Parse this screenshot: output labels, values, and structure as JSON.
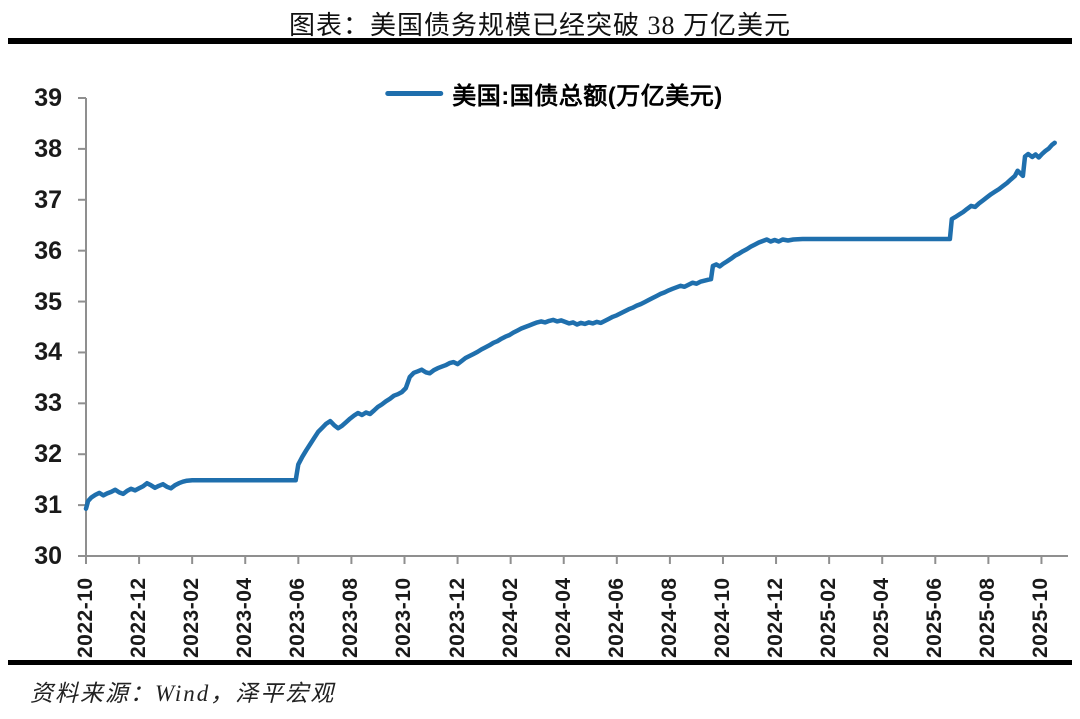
{
  "title": "图表：美国债务规模已经突破 38 万亿美元",
  "source": "资料来源：Wind，泽平宏观",
  "colors": {
    "line": "#1F6FAD",
    "axis": "#8f8f8f",
    "rule": "#000000",
    "tick_text": "#1a1a1a"
  },
  "chart_data": {
    "type": "line",
    "title": "图表：美国债务规模已经突破 38 万亿美元",
    "legend_position": "top-center",
    "grid": false,
    "xlabel": "",
    "ylabel": "",
    "x_unit": "months since 2022-10",
    "xlim": [
      0,
      37
    ],
    "ylim": [
      30,
      39
    ],
    "y_ticks": [
      30,
      31,
      32,
      33,
      34,
      35,
      36,
      37,
      38,
      39
    ],
    "x_tick_step_months": 2,
    "x_tick_labels": [
      "2022-10",
      "2022-12",
      "2023-02",
      "2023-04",
      "2023-06",
      "2023-08",
      "2023-10",
      "2023-12",
      "2024-02",
      "2024-04",
      "2024-06",
      "2024-08",
      "2024-10",
      "2024-12",
      "2025-02",
      "2025-04",
      "2025-06",
      "2025-08",
      "2025-10"
    ],
    "series": [
      {
        "name": "美国:国债总额(万亿美元)",
        "color": "#1F6FAD",
        "points": [
          [
            0,
            30.93
          ],
          [
            0.08,
            31.08
          ],
          [
            0.2,
            31.15
          ],
          [
            0.35,
            31.2
          ],
          [
            0.5,
            31.24
          ],
          [
            0.65,
            31.19
          ],
          [
            0.8,
            31.23
          ],
          [
            0.95,
            31.26
          ],
          [
            1.1,
            31.3
          ],
          [
            1.25,
            31.25
          ],
          [
            1.4,
            31.22
          ],
          [
            1.55,
            31.28
          ],
          [
            1.7,
            31.32
          ],
          [
            1.85,
            31.29
          ],
          [
            2.0,
            31.33
          ],
          [
            2.15,
            31.37
          ],
          [
            2.3,
            31.43
          ],
          [
            2.45,
            31.39
          ],
          [
            2.6,
            31.34
          ],
          [
            2.75,
            31.38
          ],
          [
            2.9,
            31.41
          ],
          [
            3.05,
            31.36
          ],
          [
            3.2,
            31.33
          ],
          [
            3.35,
            31.39
          ],
          [
            3.5,
            31.43
          ],
          [
            3.65,
            31.46
          ],
          [
            3.8,
            31.48
          ],
          [
            4.0,
            31.49
          ],
          [
            7.9,
            31.49
          ],
          [
            8.0,
            31.8
          ],
          [
            8.15,
            31.95
          ],
          [
            8.3,
            32.08
          ],
          [
            8.45,
            32.2
          ],
          [
            8.6,
            32.32
          ],
          [
            8.75,
            32.44
          ],
          [
            8.9,
            32.52
          ],
          [
            9.05,
            32.6
          ],
          [
            9.2,
            32.65
          ],
          [
            9.35,
            32.57
          ],
          [
            9.5,
            32.51
          ],
          [
            9.65,
            32.56
          ],
          [
            9.8,
            32.63
          ],
          [
            9.95,
            32.7
          ],
          [
            10.1,
            32.76
          ],
          [
            10.25,
            32.81
          ],
          [
            10.4,
            32.77
          ],
          [
            10.55,
            32.82
          ],
          [
            10.7,
            32.79
          ],
          [
            10.85,
            32.86
          ],
          [
            11.0,
            32.93
          ],
          [
            11.15,
            32.98
          ],
          [
            11.3,
            33.04
          ],
          [
            11.45,
            33.09
          ],
          [
            11.6,
            33.15
          ],
          [
            11.75,
            33.18
          ],
          [
            11.9,
            33.22
          ],
          [
            12.05,
            33.3
          ],
          [
            12.2,
            33.52
          ],
          [
            12.35,
            33.6
          ],
          [
            12.5,
            33.63
          ],
          [
            12.65,
            33.66
          ],
          [
            12.8,
            33.61
          ],
          [
            12.95,
            33.59
          ],
          [
            13.1,
            33.65
          ],
          [
            13.25,
            33.69
          ],
          [
            13.4,
            33.72
          ],
          [
            13.55,
            33.75
          ],
          [
            13.7,
            33.79
          ],
          [
            13.85,
            33.81
          ],
          [
            14.0,
            33.77
          ],
          [
            14.15,
            33.83
          ],
          [
            14.3,
            33.89
          ],
          [
            14.45,
            33.93
          ],
          [
            14.6,
            33.97
          ],
          [
            14.75,
            34.01
          ],
          [
            14.9,
            34.06
          ],
          [
            15.05,
            34.1
          ],
          [
            15.2,
            34.14
          ],
          [
            15.35,
            34.19
          ],
          [
            15.5,
            34.22
          ],
          [
            15.65,
            34.27
          ],
          [
            15.8,
            34.31
          ],
          [
            15.95,
            34.34
          ],
          [
            16.1,
            34.39
          ],
          [
            16.25,
            34.43
          ],
          [
            16.4,
            34.47
          ],
          [
            16.55,
            34.5
          ],
          [
            16.7,
            34.53
          ],
          [
            16.85,
            34.56
          ],
          [
            17.0,
            34.59
          ],
          [
            17.15,
            34.61
          ],
          [
            17.3,
            34.59
          ],
          [
            17.45,
            34.62
          ],
          [
            17.6,
            34.64
          ],
          [
            17.75,
            34.61
          ],
          [
            17.9,
            34.63
          ],
          [
            18.05,
            34.6
          ],
          [
            18.2,
            34.57
          ],
          [
            18.35,
            34.59
          ],
          [
            18.5,
            34.55
          ],
          [
            18.65,
            34.58
          ],
          [
            18.8,
            34.56
          ],
          [
            18.95,
            34.59
          ],
          [
            19.1,
            34.57
          ],
          [
            19.25,
            34.6
          ],
          [
            19.4,
            34.58
          ],
          [
            19.55,
            34.62
          ],
          [
            19.7,
            34.66
          ],
          [
            19.85,
            34.7
          ],
          [
            20.0,
            34.73
          ],
          [
            20.15,
            34.77
          ],
          [
            20.3,
            34.81
          ],
          [
            20.45,
            34.85
          ],
          [
            20.6,
            34.88
          ],
          [
            20.75,
            34.92
          ],
          [
            20.9,
            34.95
          ],
          [
            21.05,
            34.99
          ],
          [
            21.2,
            35.03
          ],
          [
            21.35,
            35.07
          ],
          [
            21.5,
            35.11
          ],
          [
            21.65,
            35.15
          ],
          [
            21.8,
            35.18
          ],
          [
            21.95,
            35.22
          ],
          [
            22.1,
            35.25
          ],
          [
            22.25,
            35.28
          ],
          [
            22.4,
            35.31
          ],
          [
            22.55,
            35.29
          ],
          [
            22.7,
            35.33
          ],
          [
            22.85,
            35.37
          ],
          [
            23.0,
            35.35
          ],
          [
            23.15,
            35.39
          ],
          [
            23.3,
            35.41
          ],
          [
            23.45,
            35.43
          ],
          [
            23.55,
            35.44
          ],
          [
            23.62,
            35.7
          ],
          [
            23.75,
            35.73
          ],
          [
            23.88,
            35.69
          ],
          [
            24.0,
            35.74
          ],
          [
            24.15,
            35.79
          ],
          [
            24.3,
            35.84
          ],
          [
            24.45,
            35.9
          ],
          [
            24.6,
            35.94
          ],
          [
            24.75,
            35.99
          ],
          [
            24.9,
            36.03
          ],
          [
            25.05,
            36.08
          ],
          [
            25.2,
            36.12
          ],
          [
            25.35,
            36.16
          ],
          [
            25.5,
            36.19
          ],
          [
            25.65,
            36.22
          ],
          [
            25.8,
            36.18
          ],
          [
            25.95,
            36.21
          ],
          [
            26.1,
            36.18
          ],
          [
            26.25,
            36.22
          ],
          [
            26.45,
            36.2
          ],
          [
            26.65,
            36.22
          ],
          [
            27.0,
            36.23
          ],
          [
            32.55,
            36.23
          ],
          [
            32.62,
            36.62
          ],
          [
            32.75,
            36.66
          ],
          [
            32.9,
            36.71
          ],
          [
            33.05,
            36.76
          ],
          [
            33.2,
            36.82
          ],
          [
            33.35,
            36.88
          ],
          [
            33.5,
            36.86
          ],
          [
            33.65,
            36.93
          ],
          [
            33.8,
            36.99
          ],
          [
            33.95,
            37.05
          ],
          [
            34.1,
            37.11
          ],
          [
            34.25,
            37.16
          ],
          [
            34.4,
            37.21
          ],
          [
            34.55,
            37.27
          ],
          [
            34.7,
            37.33
          ],
          [
            34.85,
            37.4
          ],
          [
            35.0,
            37.47
          ],
          [
            35.1,
            37.57
          ],
          [
            35.2,
            37.52
          ],
          [
            35.3,
            37.47
          ],
          [
            35.38,
            37.85
          ],
          [
            35.5,
            37.9
          ],
          [
            35.65,
            37.84
          ],
          [
            35.78,
            37.89
          ],
          [
            35.9,
            37.83
          ],
          [
            36.02,
            37.9
          ],
          [
            36.15,
            37.96
          ],
          [
            36.28,
            38.01
          ],
          [
            36.4,
            38.08
          ],
          [
            36.5,
            38.12
          ]
        ]
      }
    ]
  }
}
